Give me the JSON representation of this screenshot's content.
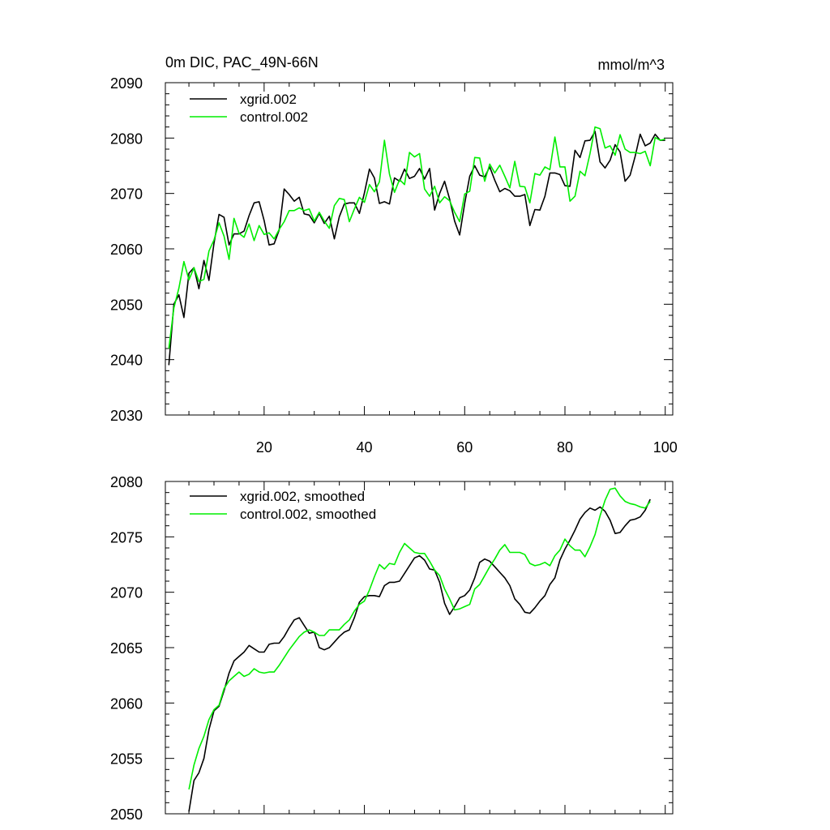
{
  "chart_data": [
    {
      "type": "line",
      "title": "0m DIC, PAC_49N-66N",
      "units": "mmol/m^3",
      "xlim": [
        0.3,
        101.5
      ],
      "ylim": [
        2030,
        2090
      ],
      "x_ticks": [
        20,
        40,
        60,
        80,
        100
      ],
      "y_ticks": [
        2030,
        2040,
        2050,
        2060,
        2070,
        2080,
        2090
      ],
      "grid": false,
      "legend_position": "top-left",
      "x": [
        1,
        2,
        3,
        4,
        5,
        6,
        7,
        8,
        9,
        10,
        11,
        12,
        13,
        14,
        15,
        16,
        17,
        18,
        19,
        20,
        21,
        22,
        23,
        24,
        25,
        26,
        27,
        28,
        29,
        30,
        31,
        32,
        33,
        34,
        35,
        36,
        37,
        38,
        39,
        40,
        41,
        42,
        43,
        44,
        45,
        46,
        47,
        48,
        49,
        50,
        51,
        52,
        53,
        54,
        55,
        56,
        57,
        58,
        59,
        60,
        61,
        62,
        63,
        64,
        65,
        66,
        67,
        68,
        69,
        70,
        71,
        72,
        73,
        74,
        75,
        76,
        77,
        78,
        79,
        80,
        81,
        82,
        83,
        84,
        85,
        86,
        87,
        88,
        89,
        90,
        91,
        92,
        93,
        94,
        95,
        96,
        97,
        98,
        99,
        100
      ],
      "series": [
        {
          "name": "xgrid.002",
          "color": "#000000",
          "values": [
            2039.0,
            2050.0,
            2051.7,
            2047.6,
            2055.6,
            2056.6,
            2052.8,
            2057.9,
            2054.3,
            2061.0,
            2066.2,
            2065.7,
            2060.7,
            2062.7,
            2062.7,
            2063.2,
            2066.0,
            2068.3,
            2068.5,
            2065.1,
            2060.7,
            2060.9,
            2063.4,
            2070.8,
            2069.8,
            2068.6,
            2069.3,
            2066.3,
            2066.1,
            2064.7,
            2066.4,
            2064.6,
            2065.9,
            2061.8,
            2065.8,
            2068.1,
            2068.3,
            2068.3,
            2066.4,
            2070.1,
            2074.4,
            2072.8,
            2068.2,
            2068.5,
            2068.1,
            2072.8,
            2072.2,
            2074.4,
            2072.7,
            2073.1,
            2074.5,
            2072.6,
            2074.5,
            2067.0,
            2070.0,
            2072.2,
            2069.0,
            2065.0,
            2062.5,
            2068.2,
            2073.1,
            2075.0,
            2073.3,
            2073.0,
            2074.8,
            2072.4,
            2070.3,
            2070.9,
            2070.5,
            2069.5,
            2069.5,
            2069.8,
            2064.2,
            2067.1,
            2067.0,
            2069.5,
            2073.7,
            2073.7,
            2073.4,
            2071.4,
            2071.3,
            2077.8,
            2076.5,
            2079.5,
            2079.6,
            2081.2,
            2075.7,
            2074.6,
            2076.0,
            2078.8,
            2077.5,
            2072.2,
            2073.3,
            2076.7,
            2080.7,
            2078.6,
            2079.1,
            2080.7,
            2079.6,
            2079.6
          ]
        },
        {
          "name": "control.002",
          "color": "#00ee00",
          "values": [
            2042.0,
            2049.3,
            2052.9,
            2057.7,
            2054.4,
            2056.6,
            2054.1,
            2054.5,
            2059.6,
            2061.6,
            2064.7,
            2062.3,
            2058.1,
            2065.5,
            2062.8,
            2062.1,
            2064.5,
            2061.5,
            2064.2,
            2062.6,
            2062.9,
            2061.8,
            2063.5,
            2064.9,
            2066.9,
            2066.9,
            2067.4,
            2066.9,
            2067.2,
            2065.0,
            2066.6,
            2065.0,
            2063.7,
            2067.8,
            2069.1,
            2068.9,
            2064.9,
            2067.2,
            2069.3,
            2068.4,
            2071.6,
            2070.3,
            2072.1,
            2079.6,
            2073.5,
            2070.2,
            2072.5,
            2071.6,
            2077.4,
            2076.6,
            2077.2,
            2070.8,
            2069.5,
            2071.3,
            2068.3,
            2069.4,
            2068.7,
            2066.6,
            2064.9,
            2069.9,
            2070.4,
            2076.5,
            2076.4,
            2072.2,
            2075.3,
            2073.7,
            2075.1,
            2073.1,
            2071.0,
            2075.8,
            2071.3,
            2071.2,
            2068.3,
            2073.6,
            2073.3,
            2074.8,
            2074.3,
            2080.2,
            2074.8,
            2074.8,
            2068.6,
            2069.5,
            2074.0,
            2073.2,
            2077.2,
            2082.0,
            2081.7,
            2078.2,
            2078.6,
            2076.9,
            2080.6,
            2078.0,
            2077.4,
            2077.4,
            2077.2,
            2077.6,
            2075.0,
            2080.1,
            2079.6,
            2079.8
          ]
        }
      ]
    },
    {
      "type": "line",
      "xlim": [
        0.3,
        101.5
      ],
      "ylim": [
        2050,
        2080
      ],
      "x_ticks": [
        20,
        40,
        60,
        80,
        100
      ],
      "y_ticks": [
        2050,
        2055,
        2060,
        2065,
        2070,
        2075,
        2080
      ],
      "grid": false,
      "legend_position": "top-left",
      "x": [
        5,
        6,
        7,
        8,
        9,
        10,
        11,
        12,
        13,
        14,
        15,
        16,
        17,
        18,
        19,
        20,
        21,
        22,
        23,
        24,
        25,
        26,
        27,
        28,
        29,
        30,
        31,
        32,
        33,
        34,
        35,
        36,
        37,
        38,
        39,
        40,
        41,
        42,
        43,
        44,
        45,
        46,
        47,
        48,
        49,
        50,
        51,
        52,
        53,
        54,
        55,
        56,
        57,
        58,
        59,
        60,
        61,
        62,
        63,
        64,
        65,
        66,
        67,
        68,
        69,
        70,
        71,
        72,
        73,
        74,
        75,
        76,
        77,
        78,
        79,
        80,
        81,
        82,
        83,
        84,
        85,
        86,
        87,
        88,
        89,
        90,
        91,
        92,
        93,
        94,
        95,
        96,
        97
      ],
      "series": [
        {
          "name": "xgrid.002, smoothed",
          "color": "#000000",
          "values": [
            2050.2,
            2053.0,
            2053.7,
            2055.0,
            2057.6,
            2059.3,
            2059.7,
            2061.1,
            2062.7,
            2063.8,
            2064.2,
            2064.6,
            2065.2,
            2064.9,
            2064.6,
            2064.6,
            2065.3,
            2065.4,
            2065.4,
            2066.0,
            2066.8,
            2067.5,
            2067.7,
            2067.0,
            2066.3,
            2066.4,
            2065.0,
            2064.8,
            2065.0,
            2065.5,
            2066.0,
            2066.4,
            2066.6,
            2067.7,
            2069.1,
            2069.6,
            2069.7,
            2069.7,
            2069.6,
            2070.6,
            2070.9,
            2070.9,
            2071.0,
            2071.7,
            2072.4,
            2073.1,
            2073.3,
            2072.9,
            2072.1,
            2072.0,
            2070.9,
            2069.0,
            2068.0,
            2068.7,
            2069.5,
            2069.7,
            2070.2,
            2071.3,
            2072.7,
            2073.0,
            2072.8,
            2072.3,
            2071.8,
            2071.3,
            2070.6,
            2069.4,
            2068.9,
            2068.2,
            2068.1,
            2068.6,
            2069.2,
            2069.7,
            2070.7,
            2071.3,
            2072.9,
            2073.9,
            2074.7,
            2075.6,
            2076.6,
            2077.2,
            2077.6,
            2077.4,
            2077.7,
            2077.3,
            2076.5,
            2075.3,
            2075.4,
            2076.0,
            2076.5,
            2076.6,
            2076.8,
            2077.4,
            2078.4
          ]
        },
        {
          "name": "control.002, smoothed",
          "color": "#00ee00",
          "values": [
            2052.2,
            2054.4,
            2055.9,
            2057.0,
            2058.5,
            2059.4,
            2059.8,
            2061.3,
            2062.0,
            2062.4,
            2062.8,
            2062.4,
            2062.6,
            2063.1,
            2062.8,
            2062.7,
            2062.8,
            2062.8,
            2063.4,
            2064.1,
            2064.8,
            2065.4,
            2066.0,
            2066.4,
            2066.6,
            2066.4,
            2066.1,
            2066.1,
            2066.6,
            2066.6,
            2066.6,
            2067.1,
            2067.5,
            2068.3,
            2068.9,
            2069.2,
            2070.2,
            2071.4,
            2072.5,
            2072.1,
            2072.6,
            2072.5,
            2073.6,
            2074.4,
            2074.0,
            2073.6,
            2073.5,
            2073.5,
            2072.8,
            2072.0,
            2071.5,
            2070.3,
            2069.4,
            2068.4,
            2068.5,
            2068.7,
            2068.9,
            2070.3,
            2070.7,
            2071.5,
            2072.3,
            2073.0,
            2073.8,
            2074.3,
            2073.6,
            2073.6,
            2073.6,
            2073.4,
            2072.6,
            2072.4,
            2072.5,
            2072.7,
            2072.4,
            2073.3,
            2073.8,
            2074.8,
            2074.2,
            2073.8,
            2073.8,
            2073.2,
            2074.1,
            2075.2,
            2076.9,
            2078.3,
            2079.3,
            2079.4,
            2078.7,
            2078.2,
            2078.0,
            2077.9,
            2077.7,
            2077.6,
            2078.2
          ]
        }
      ]
    }
  ]
}
